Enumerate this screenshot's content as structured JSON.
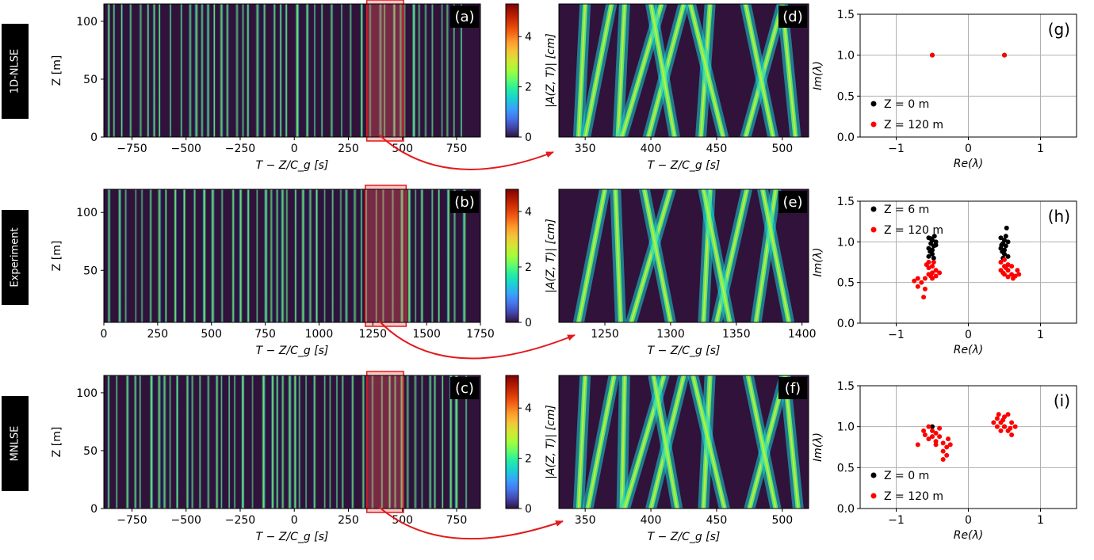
{
  "figure": {
    "row_labels": [
      "1D-NLSE",
      "Experiment",
      "MNLSE"
    ],
    "panel_letters": [
      "(a)",
      "(b)",
      "(c)",
      "(d)",
      "(e)",
      "(f)",
      "(g)",
      "(h)",
      "(i)"
    ],
    "colors": {
      "arrow": "#e31a1c",
      "highlight_fill": "#ff5555",
      "highlight_stroke": "#e31a1c",
      "heatmap_bg": "#30123b"
    }
  },
  "chart_data": [
    {
      "id": "a",
      "type": "heatmap",
      "colormap": "turbo",
      "xlabel": "T − Z/C_g [s]",
      "ylabel": "Z [m]",
      "xticks": [
        -750,
        -500,
        -250,
        0,
        250,
        500,
        750
      ],
      "yticks": [
        0,
        50,
        100
      ],
      "xlim": [
        -880,
        860
      ],
      "ylim": [
        0,
        115
      ],
      "highlight_x": [
        335,
        505
      ]
    },
    {
      "id": "b",
      "type": "heatmap",
      "colormap": "turbo",
      "xlabel": "T − Z/C_g [s]",
      "ylabel": "Z [m]",
      "xticks": [
        0,
        250,
        500,
        750,
        1000,
        1250,
        1500,
        1750
      ],
      "yticks": [
        50,
        100
      ],
      "xlim": [
        0,
        1750
      ],
      "ylim": [
        5,
        120
      ],
      "highlight_x": [
        1215,
        1405
      ]
    },
    {
      "id": "c",
      "type": "heatmap",
      "colormap": "turbo",
      "xlabel": "T − Z/C_g [s]",
      "ylabel": "Z [m]",
      "xticks": [
        -750,
        -500,
        -250,
        0,
        250,
        500,
        750
      ],
      "yticks": [
        0,
        50,
        100
      ],
      "xlim": [
        -880,
        860
      ],
      "ylim": [
        0,
        115
      ],
      "highlight_x": [
        335,
        505
      ]
    },
    {
      "id": "colorbar-1",
      "type": "colorbar",
      "colormap": "turbo",
      "label": "|A(Z, T)| [cm]",
      "ticks": [
        0,
        2,
        4
      ],
      "range": [
        0,
        5.3
      ]
    },
    {
      "id": "colorbar-2",
      "type": "colorbar",
      "colormap": "turbo",
      "label": "|A(Z, T)| [cm]",
      "ticks": [
        0,
        2,
        4
      ],
      "range": [
        0,
        4.8
      ]
    },
    {
      "id": "colorbar-3",
      "type": "colorbar",
      "colormap": "turbo",
      "label": "|A(Z, T)| [cm]",
      "ticks": [
        0,
        2,
        4
      ],
      "range": [
        0,
        5.3
      ]
    },
    {
      "id": "d",
      "type": "heatmap",
      "colormap": "turbo",
      "xlabel": "T − Z/C_g [s]",
      "xticks": [
        350,
        400,
        450,
        500
      ],
      "xlim": [
        330,
        520
      ],
      "tracks": [
        [
          345,
          350
        ],
        [
          350,
          370
        ],
        [
          375,
          380
        ],
        [
          378,
          408
        ],
        [
          398,
          425
        ],
        [
          418,
          400
        ],
        [
          438,
          445
        ],
        [
          455,
          430
        ],
        [
          472,
          500
        ],
        [
          493,
          472
        ],
        [
          510,
          500
        ]
      ]
    },
    {
      "id": "e",
      "type": "heatmap",
      "colormap": "turbo",
      "xlabel": "T − Z/C_g [s]",
      "xticks": [
        1250,
        1300,
        1350,
        1400
      ],
      "xlim": [
        1215,
        1405
      ],
      "tracks": [
        [
          1230,
          1250
        ],
        [
          1262,
          1258
        ],
        [
          1270,
          1300
        ],
        [
          1300,
          1280
        ],
        [
          1325,
          1330
        ],
        [
          1335,
          1358
        ],
        [
          1345,
          1325
        ],
        [
          1365,
          1380
        ],
        [
          1390,
          1370
        ]
      ]
    },
    {
      "id": "f",
      "type": "heatmap",
      "colormap": "turbo",
      "xlabel": "T − Z/C_g [s]",
      "xticks": [
        350,
        400,
        450,
        500
      ],
      "xlim": [
        330,
        520
      ],
      "tracks": [
        [
          345,
          350
        ],
        [
          352,
          372
        ],
        [
          378,
          380
        ],
        [
          380,
          410
        ],
        [
          400,
          425
        ],
        [
          420,
          402
        ],
        [
          440,
          445
        ],
        [
          456,
          432
        ],
        [
          475,
          502
        ],
        [
          495,
          474
        ],
        [
          512,
          502
        ]
      ]
    },
    {
      "id": "g",
      "type": "scatter",
      "xlabel": "Re(λ)",
      "ylabel": "Im(λ)",
      "xlim": [
        -1.5,
        1.5
      ],
      "ylim": [
        0,
        1.5
      ],
      "xticks": [
        -1,
        0,
        1
      ],
      "yticks": [
        0.0,
        0.5,
        1.0,
        1.5
      ],
      "xtick_labels": [
        "−1",
        "0",
        "1"
      ],
      "ytick_labels": [
        "0.0",
        "0.5",
        "1.0",
        "1.5"
      ],
      "legend_position": "lower-left",
      "grid": true,
      "series": [
        {
          "name": "Z = 0 m",
          "color": "#000000",
          "points": [
            [
              -0.5,
              1.0
            ],
            [
              0.5,
              1.0
            ]
          ]
        },
        {
          "name": "Z = 120 m",
          "color": "#ff0000",
          "points": [
            [
              -0.5,
              1.0
            ],
            [
              0.5,
              1.0
            ]
          ]
        }
      ]
    },
    {
      "id": "h",
      "type": "scatter",
      "xlabel": "Re(λ)",
      "ylabel": "Im(λ)",
      "xlim": [
        -1.5,
        1.5
      ],
      "ylim": [
        0,
        1.5
      ],
      "xticks": [
        -1,
        0,
        1
      ],
      "yticks": [
        0.0,
        0.5,
        1.0,
        1.5
      ],
      "xtick_labels": [
        "−1",
        "0",
        "1"
      ],
      "ytick_labels": [
        "0.0",
        "0.5",
        "1.0",
        "1.5"
      ],
      "legend_position": "upper-left",
      "grid": true,
      "series": [
        {
          "name": "Z = 6 m",
          "color": "#000000",
          "points": [
            [
              -0.55,
              1.05
            ],
            [
              -0.5,
              1.02
            ],
            [
              -0.45,
              1.0
            ],
            [
              -0.52,
              0.98
            ],
            [
              -0.48,
              0.95
            ],
            [
              -0.55,
              0.92
            ],
            [
              -0.5,
              0.9
            ],
            [
              -0.47,
              1.07
            ],
            [
              -0.53,
              0.88
            ],
            [
              -0.5,
              0.85
            ],
            [
              -0.55,
              0.82
            ],
            [
              -0.48,
              0.8
            ],
            [
              -0.52,
              1.04
            ],
            [
              -0.45,
              0.96
            ],
            [
              0.45,
              1.05
            ],
            [
              0.5,
              1.02
            ],
            [
              0.55,
              1.0
            ],
            [
              0.48,
              0.98
            ],
            [
              0.52,
              0.95
            ],
            [
              0.45,
              0.92
            ],
            [
              0.5,
              0.9
            ],
            [
              0.53,
              1.17
            ],
            [
              0.47,
              0.88
            ],
            [
              0.5,
              0.85
            ],
            [
              0.55,
              0.82
            ],
            [
              0.48,
              0.8
            ],
            [
              0.52,
              1.07
            ],
            [
              0.46,
              0.96
            ]
          ]
        },
        {
          "name": "Z = 120 m",
          "color": "#ff0000",
          "points": [
            [
              -0.55,
              0.75
            ],
            [
              -0.5,
              0.7
            ],
            [
              -0.45,
              0.65
            ],
            [
              -0.55,
              0.6
            ],
            [
              -0.6,
              0.55
            ],
            [
              -0.5,
              0.55
            ],
            [
              -0.65,
              0.5
            ],
            [
              -0.7,
              0.45
            ],
            [
              -0.7,
              0.55
            ],
            [
              -0.75,
              0.52
            ],
            [
              -0.6,
              0.42
            ],
            [
              -0.62,
              0.32
            ],
            [
              -0.45,
              0.58
            ],
            [
              -0.4,
              0.62
            ],
            [
              -0.55,
              0.68
            ],
            [
              -0.5,
              0.62
            ],
            [
              -0.48,
              0.75
            ],
            [
              -0.58,
              0.72
            ],
            [
              -0.52,
              0.58
            ],
            [
              0.45,
              0.75
            ],
            [
              0.5,
              0.7
            ],
            [
              0.55,
              0.65
            ],
            [
              0.6,
              0.6
            ],
            [
              0.65,
              0.58
            ],
            [
              0.7,
              0.6
            ],
            [
              0.5,
              0.6
            ],
            [
              0.55,
              0.57
            ],
            [
              0.45,
              0.65
            ],
            [
              0.6,
              0.7
            ],
            [
              0.5,
              0.78
            ],
            [
              0.55,
              0.72
            ],
            [
              0.48,
              0.62
            ],
            [
              0.62,
              0.55
            ],
            [
              0.68,
              0.65
            ],
            [
              0.52,
              0.68
            ]
          ]
        }
      ]
    },
    {
      "id": "i",
      "type": "scatter",
      "xlabel": "Re(λ)",
      "ylabel": "Im(λ)",
      "xlim": [
        -1.5,
        1.5
      ],
      "ylim": [
        0,
        1.5
      ],
      "xticks": [
        -1,
        0,
        1
      ],
      "yticks": [
        0.0,
        0.5,
        1.0,
        1.5
      ],
      "xtick_labels": [
        "−1",
        "0",
        "1"
      ],
      "ytick_labels": [
        "0.0",
        "0.5",
        "1.0",
        "1.5"
      ],
      "legend_position": "lower-left",
      "grid": true,
      "series": [
        {
          "name": "Z = 0 m",
          "color": "#000000",
          "points": [
            [
              -0.5,
              1.0
            ],
            [
              0.5,
              1.0
            ]
          ]
        },
        {
          "name": "Z = 120 m",
          "color": "#ff0000",
          "points": [
            [
              -0.55,
              1.0
            ],
            [
              -0.5,
              0.95
            ],
            [
              -0.45,
              0.92
            ],
            [
              -0.6,
              0.9
            ],
            [
              -0.4,
              0.88
            ],
            [
              -0.55,
              0.85
            ],
            [
              -0.45,
              0.82
            ],
            [
              -0.5,
              0.88
            ],
            [
              -0.35,
              0.8
            ],
            [
              -0.3,
              0.75
            ],
            [
              -0.35,
              0.7
            ],
            [
              -0.3,
              0.65
            ],
            [
              -0.35,
              0.6
            ],
            [
              -0.7,
              0.78
            ],
            [
              -0.62,
              0.95
            ],
            [
              -0.4,
              0.98
            ],
            [
              -0.28,
              0.85
            ],
            [
              -0.25,
              0.78
            ],
            [
              -0.45,
              0.78
            ],
            [
              0.4,
              1.1
            ],
            [
              0.45,
              1.05
            ],
            [
              0.5,
              1.0
            ],
            [
              0.55,
              0.95
            ],
            [
              0.6,
              1.05
            ],
            [
              0.45,
              0.95
            ],
            [
              0.4,
              1.0
            ],
            [
              0.55,
              1.15
            ],
            [
              0.6,
              0.9
            ],
            [
              0.35,
              1.05
            ],
            [
              0.5,
              1.12
            ],
            [
              0.65,
              1.0
            ],
            [
              0.48,
              1.08
            ],
            [
              0.58,
              0.98
            ],
            [
              0.42,
              1.15
            ]
          ]
        }
      ]
    }
  ]
}
